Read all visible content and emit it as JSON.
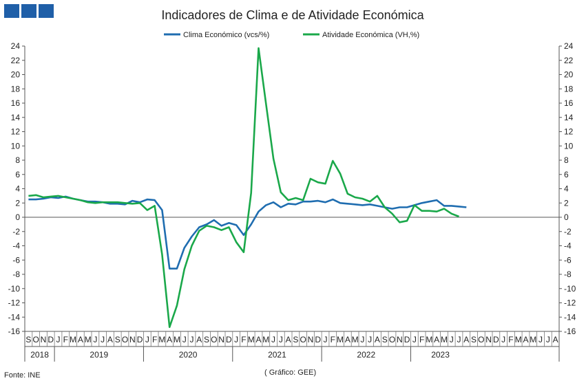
{
  "chart_data": {
    "type": "line",
    "title": "Indicadores de Clima e de Atividade Económica",
    "ylim": [
      -16,
      24
    ],
    "y2lim": [
      -16,
      24
    ],
    "yticks": [
      -16,
      -14,
      -12,
      -10,
      -8,
      -6,
      -4,
      -2,
      0,
      2,
      4,
      6,
      8,
      10,
      12,
      14,
      16,
      18,
      20,
      22,
      24
    ],
    "legend_position": "top-center",
    "grid": false,
    "month_labels": [
      "S",
      "O",
      "N",
      "D",
      "J",
      "F",
      "M",
      "A",
      "M",
      "J",
      "J",
      "A",
      "S",
      "O",
      "N",
      "D",
      "J",
      "F",
      "M",
      "A",
      "M",
      "J",
      "J",
      "A",
      "S",
      "O",
      "N",
      "D",
      "J",
      "F",
      "M",
      "A",
      "M",
      "J",
      "J",
      "A",
      "S",
      "O",
      "N",
      "D",
      "J",
      "F",
      "M",
      "A",
      "M",
      "J",
      "J",
      "A",
      "S",
      "O",
      "N",
      "D",
      "J",
      "F",
      "M",
      "A",
      "M",
      "J",
      "J",
      "A",
      "S",
      "O",
      "N",
      "D",
      "J",
      "F",
      "M",
      "A",
      "M",
      "J",
      "J",
      "A"
    ],
    "year_labels": [
      {
        "label": "2018",
        "start": 0,
        "end": 3
      },
      {
        "label": "2019",
        "start": 4,
        "end": 15
      },
      {
        "label": "2020",
        "start": 16,
        "end": 27
      },
      {
        "label": "2021",
        "start": 28,
        "end": 39
      },
      {
        "label": "2022",
        "start": 40,
        "end": 51
      },
      {
        "label": "2023",
        "start": 52,
        "end": 59
      }
    ],
    "series": [
      {
        "name": "Clima Económico (vcs/%)",
        "color": "#1f6db0",
        "values": [
          2.5,
          2.5,
          2.6,
          2.8,
          2.7,
          2.9,
          2.6,
          2.4,
          2.2,
          2.2,
          2.1,
          1.9,
          1.9,
          1.8,
          2.3,
          2.1,
          2.5,
          2.4,
          1.0,
          -7.2,
          -7.2,
          -4.3,
          -2.7,
          -1.4,
          -1.0,
          -0.4,
          -1.2,
          -0.8,
          -1.1,
          -2.5,
          -1.0,
          0.8,
          1.7,
          2.1,
          1.4,
          1.9,
          1.8,
          2.2,
          2.2,
          2.3,
          2.1,
          2.5,
          2.0,
          1.9,
          1.8,
          1.7,
          1.8,
          1.6,
          1.4,
          1.2,
          1.4,
          1.4,
          1.7,
          2.0,
          2.2,
          2.4,
          1.6,
          1.6,
          1.5,
          1.4
        ]
      },
      {
        "name": "Atividade Económica (VH,%)",
        "color": "#1aa84a",
        "values": [
          3.0,
          3.1,
          2.8,
          2.9,
          3.0,
          2.8,
          2.6,
          2.4,
          2.1,
          2.0,
          2.1,
          2.1,
          2.1,
          2.0,
          1.9,
          2.0,
          1.0,
          1.6,
          -5.2,
          -15.4,
          -12.4,
          -7.3,
          -4.0,
          -1.9,
          -1.2,
          -1.4,
          -1.8,
          -1.4,
          -3.5,
          -4.9,
          3.4,
          23.7,
          15.9,
          8.2,
          3.5,
          2.4,
          2.7,
          2.4,
          5.4,
          4.9,
          4.7,
          7.9,
          6.1,
          3.3,
          2.8,
          2.6,
          2.2,
          3.0,
          1.4,
          0.5,
          -0.7,
          -0.5,
          1.7,
          0.9,
          0.9,
          0.8,
          1.2,
          0.5,
          0.1
        ]
      }
    ]
  },
  "footer": {
    "source": "Fonte: INE",
    "credit": "( Gráfico: GEE)"
  },
  "logo": {
    "color": "#1f5fa8"
  }
}
